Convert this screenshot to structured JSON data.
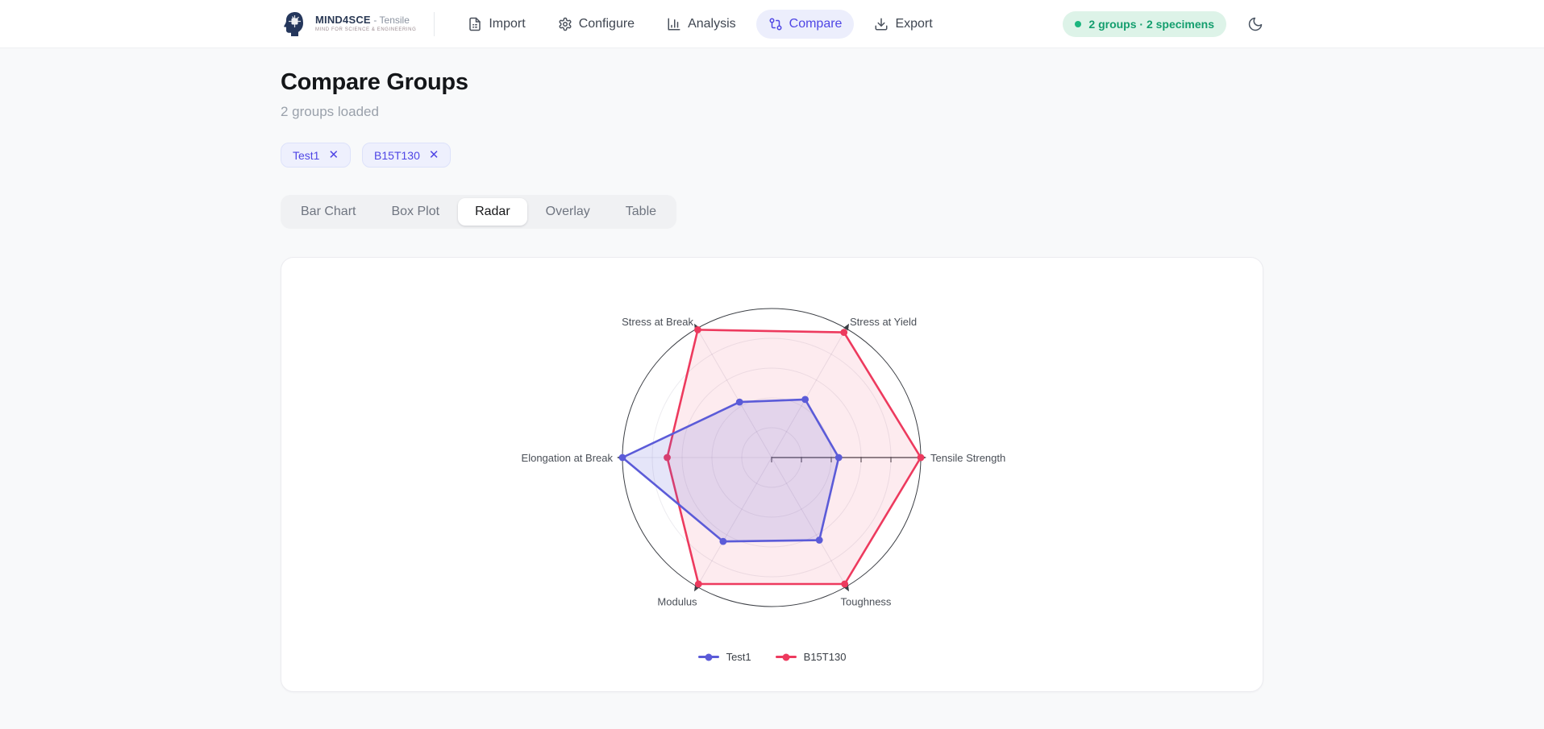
{
  "brand": {
    "name": "MIND4SCE",
    "suffix": "- Tensile",
    "tagline": "MIND FOR SCIENCE & ENGINEERING"
  },
  "nav": {
    "items": [
      {
        "label": "Import",
        "icon": "file-icon",
        "active": false
      },
      {
        "label": "Configure",
        "icon": "gear-icon",
        "active": false
      },
      {
        "label": "Analysis",
        "icon": "bar-chart-icon",
        "active": false
      },
      {
        "label": "Compare",
        "icon": "git-compare-icon",
        "active": true
      },
      {
        "label": "Export",
        "icon": "download-icon",
        "active": false
      }
    ]
  },
  "header": {
    "status_badge": "2 groups · 2 specimens",
    "status_color": "#149e6e",
    "status_bg": "#ddf3e8",
    "theme_icon": "moon-icon"
  },
  "page": {
    "title": "Compare Groups",
    "subtitle": "2 groups loaded"
  },
  "chips": [
    {
      "label": "Test1",
      "close_icon": "close-icon"
    },
    {
      "label": "B15T130",
      "close_icon": "close-icon"
    }
  ],
  "tabs": [
    {
      "label": "Bar Chart",
      "active": false
    },
    {
      "label": "Box Plot",
      "active": false
    },
    {
      "label": "Radar",
      "active": true
    },
    {
      "label": "Overlay",
      "active": false
    },
    {
      "label": "Table",
      "active": false
    }
  ],
  "accent_color": "#4f46e5",
  "chart_data": {
    "type": "radar",
    "title": "",
    "axes": [
      "Tensile Strength",
      "Stress at Yield",
      "Stress at Break",
      "Elongation at Break",
      "Modulus",
      "Toughness"
    ],
    "angles_deg": [
      0,
      60,
      120,
      180,
      240,
      300
    ],
    "scale": {
      "min": 0,
      "max": 1,
      "rings": 5,
      "tick_labels_shown": false
    },
    "series": [
      {
        "name": "Test1",
        "color": "#5b5bd8",
        "fill_opacity": 0.16,
        "values": [
          0.45,
          0.45,
          0.43,
          1.0,
          0.65,
          0.64
        ]
      },
      {
        "name": "B15T130",
        "color": "#ed3a5e",
        "fill_opacity": 0.1,
        "values": [
          1.0,
          0.97,
          0.99,
          0.7,
          0.98,
          0.98
        ]
      }
    ],
    "legend": [
      "Test1",
      "B15T130"
    ],
    "legend_position": "bottom",
    "grid": "circular"
  }
}
